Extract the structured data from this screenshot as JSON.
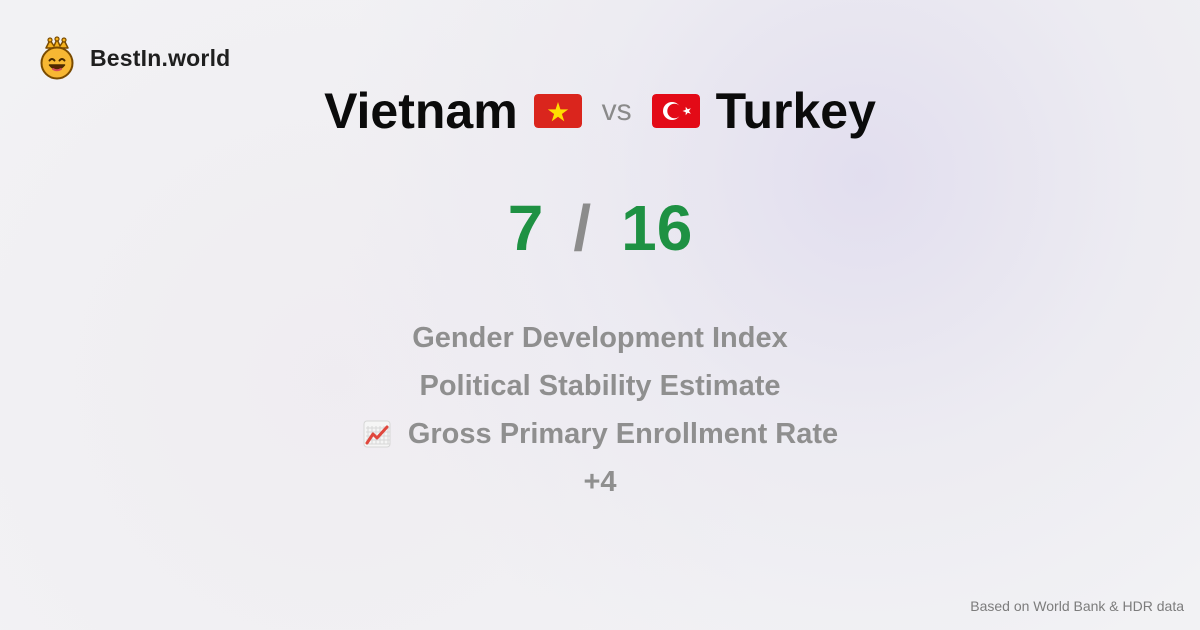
{
  "brand": {
    "name": "BestIn.world",
    "logo_icon": "smiling-crown-icon"
  },
  "comparison": {
    "left": {
      "country": "Vietnam",
      "flag_icon": "vietnam-flag-icon",
      "score": "7"
    },
    "vs_label": "vs",
    "right": {
      "country": "Turkey",
      "flag_icon": "turkey-flag-icon",
      "score": "16"
    },
    "score_separator": "/"
  },
  "metrics": [
    {
      "label": "Gender Development Index"
    },
    {
      "label": "Political Stability Estimate"
    },
    {
      "label": "Gross Primary Enrollment Rate",
      "icon": "chart-increasing-icon"
    }
  ],
  "more_label": "+4",
  "footer": {
    "source": "Based on World Bank & HDR data"
  },
  "colors": {
    "score": "#1e9143",
    "muted": "#8f8f8f",
    "title": "#0b0b0b",
    "background": "#f2f2f4"
  }
}
